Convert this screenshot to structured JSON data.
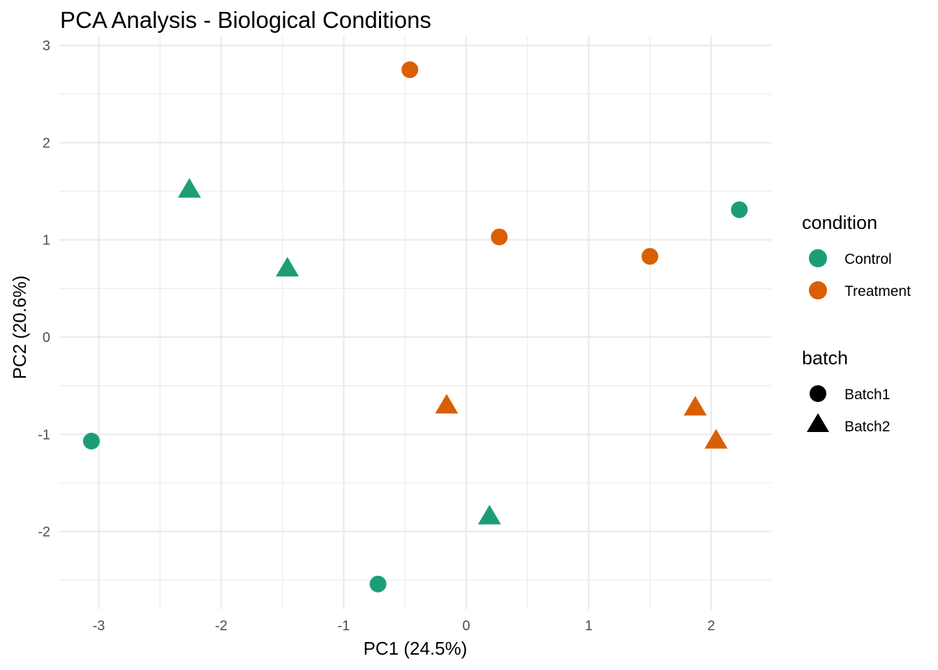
{
  "chart_data": {
    "type": "scatter",
    "title": "PCA Analysis - Biological Conditions",
    "xlabel": "PC1 (24.5%)",
    "ylabel": "PC2 (20.6%)",
    "xlim": [
      -3.3,
      2.5
    ],
    "ylim": [
      -2.8,
      3.0
    ],
    "xticks": [
      -3,
      -2,
      -1,
      0,
      1,
      2
    ],
    "yticks": [
      -2,
      -1,
      0,
      1,
      2,
      3
    ],
    "xtick_labels": [
      "-3",
      "-2",
      "-1",
      "0",
      "1",
      "2"
    ],
    "ytick_labels": [
      "-2",
      "-1",
      "0",
      "1",
      "2",
      "3"
    ],
    "grid": true,
    "legend_position": "right",
    "legends": {
      "condition": {
        "title": "condition",
        "items": [
          {
            "label": "Control",
            "color": "#1B9E77"
          },
          {
            "label": "Treatment",
            "color": "#D95F02"
          }
        ]
      },
      "batch": {
        "title": "batch",
        "items": [
          {
            "label": "Batch1",
            "shape": "circle"
          },
          {
            "label": "Batch2",
            "shape": "triangle"
          }
        ]
      }
    },
    "points": [
      {
        "x": -3.06,
        "y": -1.07,
        "condition": "Control",
        "batch": "Batch1"
      },
      {
        "x": -2.26,
        "y": 1.51,
        "condition": "Control",
        "batch": "Batch2"
      },
      {
        "x": -1.46,
        "y": 0.7,
        "condition": "Control",
        "batch": "Batch2"
      },
      {
        "x": -0.72,
        "y": -2.54,
        "condition": "Control",
        "batch": "Batch1"
      },
      {
        "x": 0.19,
        "y": -1.85,
        "condition": "Control",
        "batch": "Batch2"
      },
      {
        "x": 2.23,
        "y": 1.31,
        "condition": "Control",
        "batch": "Batch1"
      },
      {
        "x": -0.46,
        "y": 2.75,
        "condition": "Treatment",
        "batch": "Batch1"
      },
      {
        "x": 0.27,
        "y": 1.03,
        "condition": "Treatment",
        "batch": "Batch1"
      },
      {
        "x": 1.5,
        "y": 0.83,
        "condition": "Treatment",
        "batch": "Batch1"
      },
      {
        "x": -0.16,
        "y": -0.71,
        "condition": "Treatment",
        "batch": "Batch2"
      },
      {
        "x": 1.87,
        "y": -0.73,
        "condition": "Treatment",
        "batch": "Batch2"
      },
      {
        "x": 2.04,
        "y": -1.07,
        "condition": "Treatment",
        "batch": "Batch2"
      }
    ]
  }
}
